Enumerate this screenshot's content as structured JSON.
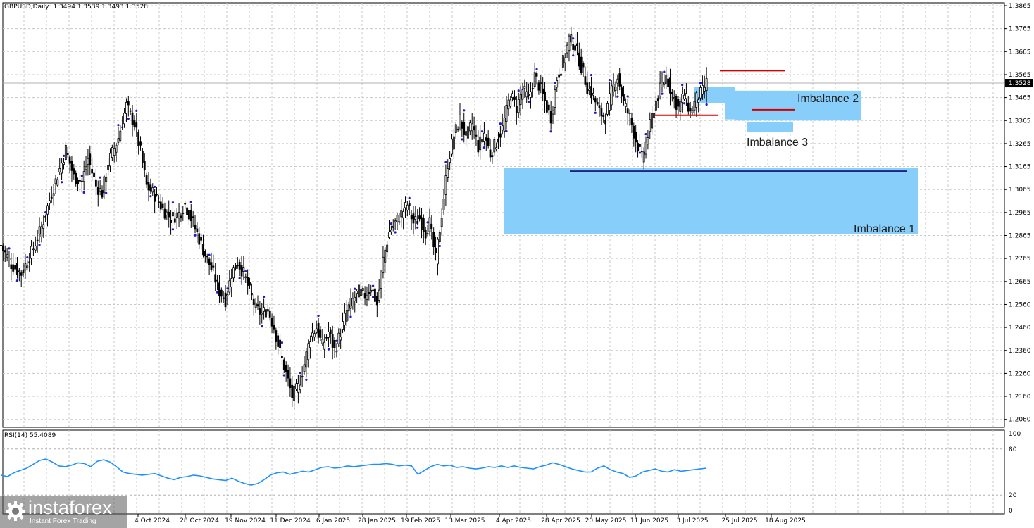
{
  "header": {
    "symbol_info": "GBPUSD,Daily",
    "ohlc": "1.3494 1.3539 1.3493 1.3528"
  },
  "rsi_header": "RSI(14) 55.4089",
  "logo": {
    "name": "instaforex",
    "tagline": "Instant Forex Trading"
  },
  "colors": {
    "imbalance": "#87cefa",
    "red_level": "#d40000",
    "blue_level": "#1a237e",
    "rsi_line": "#1e90ff",
    "candle": "#000000",
    "fractal": "#1a1acc"
  },
  "chart_data": {
    "type": "candlestick",
    "ylim": [
      1.206,
      1.3865
    ],
    "y_ticks": [
      "1.3865",
      "1.3765",
      "1.3665",
      "1.3565",
      "1.3465",
      "1.3365",
      "1.3265",
      "1.3165",
      "1.3065",
      "1.2965",
      "1.2865",
      "1.2765",
      "1.2665",
      "1.2560",
      "1.2460",
      "1.2360",
      "1.2260",
      "1.2160",
      "1.2060"
    ],
    "current_price": "1.3528",
    "x_labels": [
      "4 Oct 2024",
      "28 Oct 2024",
      "19 Nov 2024",
      "11 Dec 2024",
      "6 Jan 2025",
      "28 Jan 2025",
      "19 Feb 2025",
      "13 Mar 2025",
      "4 Apr 2025",
      "28 Apr 2025",
      "20 May 2025",
      "11 Jun 2025",
      "3 Jul 2025",
      "25 Jul 2025",
      "18 Aug 2025"
    ],
    "close_path": [
      [
        1.282,
        0
      ],
      [
        1.274,
        5
      ],
      [
        1.27,
        10
      ],
      [
        1.279,
        15
      ],
      [
        1.29,
        20
      ],
      [
        1.305,
        25
      ],
      [
        1.318,
        30
      ],
      [
        1.324,
        32
      ],
      [
        1.312,
        36
      ],
      [
        1.31,
        40
      ],
      [
        1.32,
        43
      ],
      [
        1.308,
        47
      ],
      [
        1.305,
        50
      ],
      [
        1.318,
        53
      ],
      [
        1.329,
        58
      ],
      [
        1.343,
        62
      ],
      [
        1.335,
        66
      ],
      [
        1.323,
        69
      ],
      [
        1.308,
        72
      ],
      [
        1.304,
        76
      ],
      [
        1.298,
        80
      ],
      [
        1.294,
        84
      ],
      [
        1.296,
        88
      ],
      [
        1.3,
        91
      ],
      [
        1.292,
        95
      ],
      [
        1.285,
        98
      ],
      [
        1.276,
        102
      ],
      [
        1.27,
        105
      ],
      [
        1.262,
        108
      ],
      [
        1.258,
        111
      ],
      [
        1.27,
        114
      ],
      [
        1.275,
        117
      ],
      [
        1.27,
        120
      ],
      [
        1.262,
        123
      ],
      [
        1.254,
        126
      ],
      [
        1.252,
        129
      ],
      [
        1.254,
        132
      ],
      [
        1.246,
        135
      ],
      [
        1.235,
        138
      ],
      [
        1.226,
        141
      ],
      [
        1.216,
        144
      ],
      [
        1.22,
        147
      ],
      [
        1.23,
        150
      ],
      [
        1.242,
        153
      ],
      [
        1.246,
        156
      ],
      [
        1.238,
        159
      ],
      [
        1.244,
        162
      ],
      [
        1.236,
        165
      ],
      [
        1.244,
        168
      ],
      [
        1.253,
        171
      ],
      [
        1.258,
        174
      ],
      [
        1.262,
        177
      ],
      [
        1.26,
        180
      ],
      [
        1.264,
        183
      ],
      [
        1.256,
        186
      ],
      [
        1.276,
        189
      ],
      [
        1.288,
        192
      ],
      [
        1.292,
        195
      ],
      [
        1.296,
        198
      ],
      [
        1.3,
        201
      ],
      [
        1.292,
        204
      ],
      [
        1.294,
        207
      ],
      [
        1.288,
        210
      ],
      [
        1.292,
        212
      ],
      [
        1.276,
        215
      ],
      [
        1.296,
        218
      ],
      [
        1.318,
        221
      ],
      [
        1.33,
        224
      ],
      [
        1.337,
        227
      ],
      [
        1.329,
        230
      ],
      [
        1.335,
        233
      ],
      [
        1.325,
        236
      ],
      [
        1.331,
        239
      ],
      [
        1.322,
        242
      ],
      [
        1.327,
        245
      ],
      [
        1.333,
        248
      ],
      [
        1.348,
        252
      ],
      [
        1.342,
        255
      ],
      [
        1.35,
        258
      ],
      [
        1.346,
        261
      ],
      [
        1.356,
        264
      ],
      [
        1.35,
        267
      ],
      [
        1.342,
        270
      ],
      [
        1.338,
        272
      ],
      [
        1.355,
        275
      ],
      [
        1.362,
        278
      ],
      [
        1.372,
        281
      ],
      [
        1.369,
        284
      ],
      [
        1.36,
        287
      ],
      [
        1.351,
        290
      ],
      [
        1.347,
        293
      ],
      [
        1.34,
        296
      ],
      [
        1.338,
        299
      ],
      [
        1.349,
        302
      ],
      [
        1.356,
        305
      ],
      [
        1.344,
        308
      ],
      [
        1.338,
        311
      ],
      [
        1.328,
        314
      ],
      [
        1.32,
        317
      ],
      [
        1.33,
        320
      ],
      [
        1.342,
        323
      ],
      [
        1.35,
        326
      ],
      [
        1.356,
        329
      ],
      [
        1.348,
        332
      ],
      [
        1.342,
        335
      ],
      [
        1.348,
        338
      ],
      [
        1.34,
        341
      ],
      [
        1.346,
        344
      ],
      [
        1.349,
        347
      ],
      [
        1.3528,
        349
      ]
    ],
    "levels": [
      {
        "color": "red",
        "y": 1.3582,
        "from": "25 Jul 2025",
        "to": "18 Aug 2025"
      },
      {
        "color": "red",
        "y": 1.3388,
        "from": "11 Jun 2025",
        "to": "25 Jul 2025"
      },
      {
        "color": "red",
        "y": 1.3412,
        "from": "25 Jul 2025",
        "to": "18 Aug 2025"
      },
      {
        "color": "blue",
        "y": 1.3145,
        "from": "28 Apr 2025",
        "to": "18 Aug 2025"
      }
    ],
    "zones": [
      {
        "label": "Imbalance 1",
        "y_top": 1.316,
        "y_bottom": 1.287
      },
      {
        "label": "Imbalance 2",
        "y_top": 1.3495,
        "y_bottom": 1.3365
      },
      {
        "label": "Imbalance 3",
        "y_top": 1.336,
        "y_bottom": 1.3315
      }
    ],
    "rsi": {
      "ylim": [
        0,
        100
      ],
      "ticks": [
        "100",
        "80",
        "20",
        "0"
      ],
      "values": [
        46,
        44,
        49,
        52,
        55,
        60,
        65,
        67,
        63,
        58,
        57,
        59,
        62,
        61,
        57,
        64,
        66,
        63,
        57,
        50,
        48,
        47,
        46,
        47,
        48,
        45,
        42,
        40,
        43,
        44,
        46,
        45,
        43,
        41,
        40,
        39,
        42,
        38,
        35,
        33,
        35,
        40,
        46,
        49,
        50,
        47,
        49,
        51,
        50,
        53,
        56,
        57,
        55,
        56,
        58,
        57,
        58,
        59,
        60,
        60,
        61,
        60,
        58,
        59,
        58,
        47,
        52,
        57,
        60,
        58,
        59,
        56,
        57,
        55,
        54,
        55,
        57,
        56,
        58,
        56,
        58,
        56,
        55,
        54,
        57,
        59,
        62,
        60,
        57,
        54,
        52,
        50,
        50,
        55,
        58,
        53,
        50,
        48,
        43,
        45,
        50,
        52,
        54,
        51,
        50,
        53,
        51,
        52,
        53,
        54,
        55
      ]
    }
  }
}
